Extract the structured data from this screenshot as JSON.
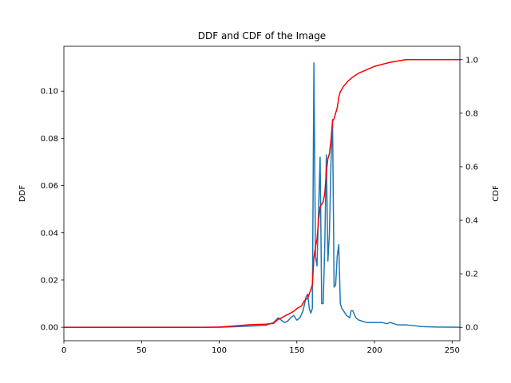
{
  "chart_data": {
    "type": "line",
    "title": "DDF and CDF of the Image",
    "xlabel": "",
    "ylabel_left": "DDF",
    "ylabel_right": "CDF",
    "xlim": [
      0,
      255
    ],
    "ylim_left": [
      -0.0057,
      0.119
    ],
    "ylim_right": [
      -0.05,
      1.05
    ],
    "x_ticks": [
      0,
      50,
      100,
      150,
      200,
      250
    ],
    "y_ticks_left": [
      0.0,
      0.02,
      0.04,
      0.06,
      0.08,
      0.1
    ],
    "y_tick_labels_left": [
      "0.00",
      "0.02",
      "0.04",
      "0.06",
      "0.08",
      "0.10"
    ],
    "y_ticks_right": [
      0.0,
      0.2,
      0.4,
      0.6,
      0.8,
      1.0
    ],
    "y_tick_labels_right": [
      "0.0",
      "0.2",
      "0.4",
      "0.6",
      "0.8",
      "1.0"
    ],
    "grid": false,
    "series": [
      {
        "axis": "left",
        "color": "#1f77b4",
        "x": [
          0,
          100,
          110,
          120,
          130,
          135,
          138,
          140,
          142,
          144,
          146,
          148,
          150,
          152,
          154,
          156,
          157,
          158,
          159,
          160,
          161,
          162,
          163,
          164,
          165,
          166,
          167,
          168,
          169,
          170,
          171,
          172,
          173,
          174,
          175,
          176,
          177,
          178,
          179,
          180,
          182,
          184,
          185,
          186,
          188,
          190,
          195,
          200,
          205,
          208,
          210,
          215,
          220,
          225,
          230,
          240,
          255
        ],
        "values": [
          0,
          0,
          0.0002,
          0.0005,
          0.0008,
          0.002,
          0.004,
          0.003,
          0.002,
          0.0025,
          0.004,
          0.005,
          0.003,
          0.004,
          0.007,
          0.013,
          0.014,
          0.008,
          0.006,
          0.008,
          0.112,
          0.03,
          0.026,
          0.05,
          0.072,
          0.01,
          0.01,
          0.035,
          0.073,
          0.028,
          0.04,
          0.07,
          0.088,
          0.017,
          0.018,
          0.03,
          0.035,
          0.01,
          0.008,
          0.007,
          0.005,
          0.004,
          0.007,
          0.007,
          0.004,
          0.003,
          0.002,
          0.002,
          0.002,
          0.0015,
          0.002,
          0.001,
          0.001,
          0.0007,
          0.0003,
          0.0001,
          0
        ]
      },
      {
        "axis": "right",
        "color": "#ff0000",
        "x": [
          0,
          90,
          100,
          110,
          120,
          130,
          135,
          138,
          140,
          143,
          145,
          148,
          150,
          153,
          155,
          157,
          159,
          160,
          161,
          162,
          163,
          164,
          165,
          166,
          167,
          168,
          169,
          170,
          171,
          172,
          173,
          174,
          175,
          176,
          177,
          178,
          180,
          183,
          186,
          190,
          200,
          210,
          215,
          220,
          225,
          235,
          255
        ],
        "values": [
          0,
          0,
          0.001,
          0.005,
          0.01,
          0.012,
          0.015,
          0.03,
          0.035,
          0.045,
          0.05,
          0.06,
          0.07,
          0.08,
          0.1,
          0.11,
          0.14,
          0.16,
          0.26,
          0.3,
          0.33,
          0.4,
          0.45,
          0.46,
          0.47,
          0.5,
          0.58,
          0.63,
          0.65,
          0.7,
          0.77,
          0.78,
          0.8,
          0.82,
          0.86,
          0.88,
          0.9,
          0.92,
          0.935,
          0.95,
          0.975,
          0.99,
          0.995,
          1.0,
          1.0,
          1.0,
          1.0
        ]
      }
    ]
  }
}
